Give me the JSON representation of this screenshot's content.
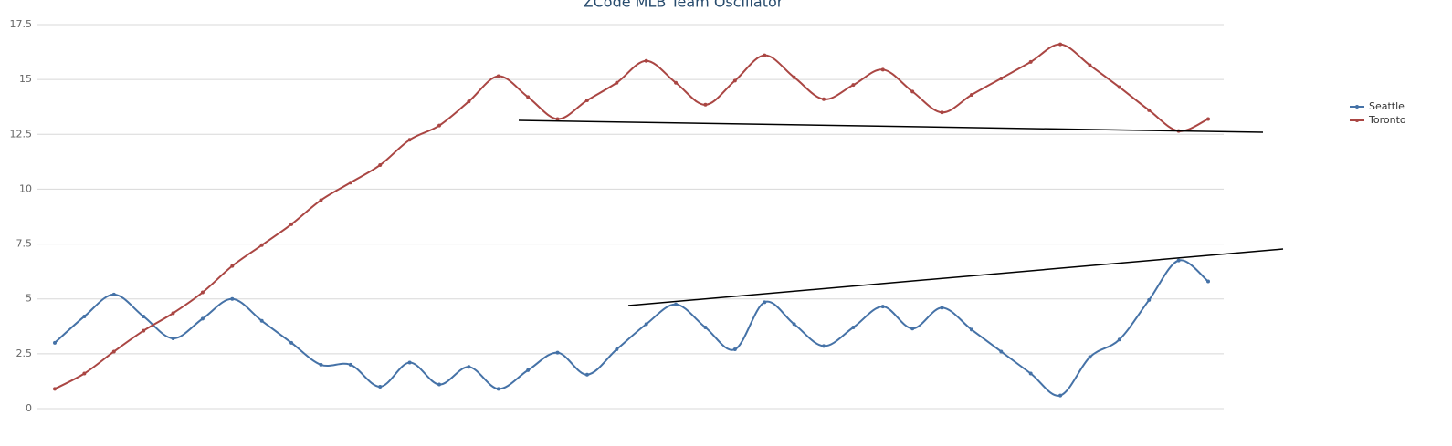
{
  "chart_data": {
    "type": "line",
    "title": "ZCode MLB Team Oscillator",
    "categories": [
      null,
      null,
      null,
      null,
      null,
      null,
      null,
      null,
      null,
      null,
      null,
      null,
      null,
      null,
      null,
      null,
      null,
      null,
      null,
      null,
      null,
      null,
      null,
      null,
      null,
      null,
      null,
      null,
      null,
      null,
      null,
      null,
      null,
      null,
      null,
      null,
      null,
      null,
      null,
      null
    ],
    "series": [
      {
        "name": "Seattle",
        "color": "#4572a7",
        "values": [
          3.0,
          4.2,
          5.2,
          4.2,
          3.2,
          4.1,
          5.0,
          4.0,
          3.0,
          2.0,
          2.0,
          1.0,
          2.1,
          1.1,
          1.9,
          0.9,
          1.75,
          2.55,
          1.55,
          2.7,
          3.85,
          4.75,
          3.7,
          2.7,
          4.85,
          3.85,
          2.85,
          3.7,
          4.65,
          3.65,
          4.6,
          3.6,
          2.6,
          1.6,
          0.6,
          2.35,
          3.15,
          4.95,
          6.75,
          5.8
        ]
      },
      {
        "name": "Toronto",
        "color": "#aa4643",
        "values": [
          0.9,
          1.6,
          2.6,
          3.55,
          4.35,
          5.3,
          6.5,
          7.45,
          8.4,
          9.5,
          10.3,
          11.1,
          12.25,
          12.9,
          14.0,
          15.15,
          14.2,
          13.2,
          14.05,
          14.85,
          15.85,
          14.85,
          13.85,
          14.95,
          16.1,
          15.1,
          14.1,
          14.75,
          15.45,
          14.45,
          13.5,
          14.3,
          15.05,
          15.8,
          16.6,
          15.65,
          14.65,
          13.6,
          12.65,
          13.2
        ]
      }
    ],
    "ylim": [
      0,
      17.5
    ],
    "yticks": [
      0,
      2.5,
      5,
      7.5,
      10,
      12.5,
      15,
      17.5
    ],
    "grid": true,
    "legend": "right"
  }
}
